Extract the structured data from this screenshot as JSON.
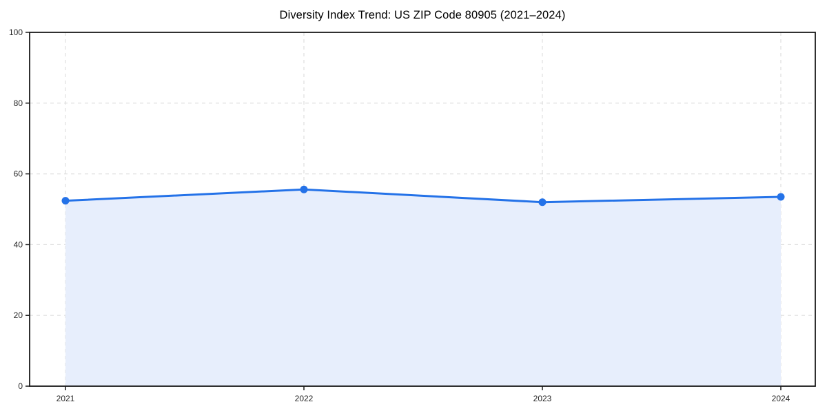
{
  "chart_data": {
    "type": "line",
    "title": "Diversity Index Trend: US ZIP Code 80905 (2021–2024)",
    "categories": [
      "2021",
      "2022",
      "2023",
      "2024"
    ],
    "values": [
      52.4,
      55.6,
      52.0,
      53.5
    ],
    "series": [
      {
        "name": "Diversity Index",
        "values": [
          52.4,
          55.6,
          52.0,
          53.5
        ]
      }
    ],
    "xlabel": "",
    "ylabel": "",
    "ylim": [
      0,
      100
    ],
    "yticks": [
      0,
      20,
      40,
      60,
      80,
      100
    ],
    "grid": "dashed, both axes",
    "area_fill": true,
    "legend": "none",
    "marker": "circle",
    "colors": {
      "line": "#2472e8",
      "marker": "#2472e8",
      "fill": "#e7eefc",
      "grid": "#dedede",
      "axis": "#1a1a1a",
      "tick_label": "#262626",
      "title": "#000000",
      "background": "#ffffff"
    }
  }
}
